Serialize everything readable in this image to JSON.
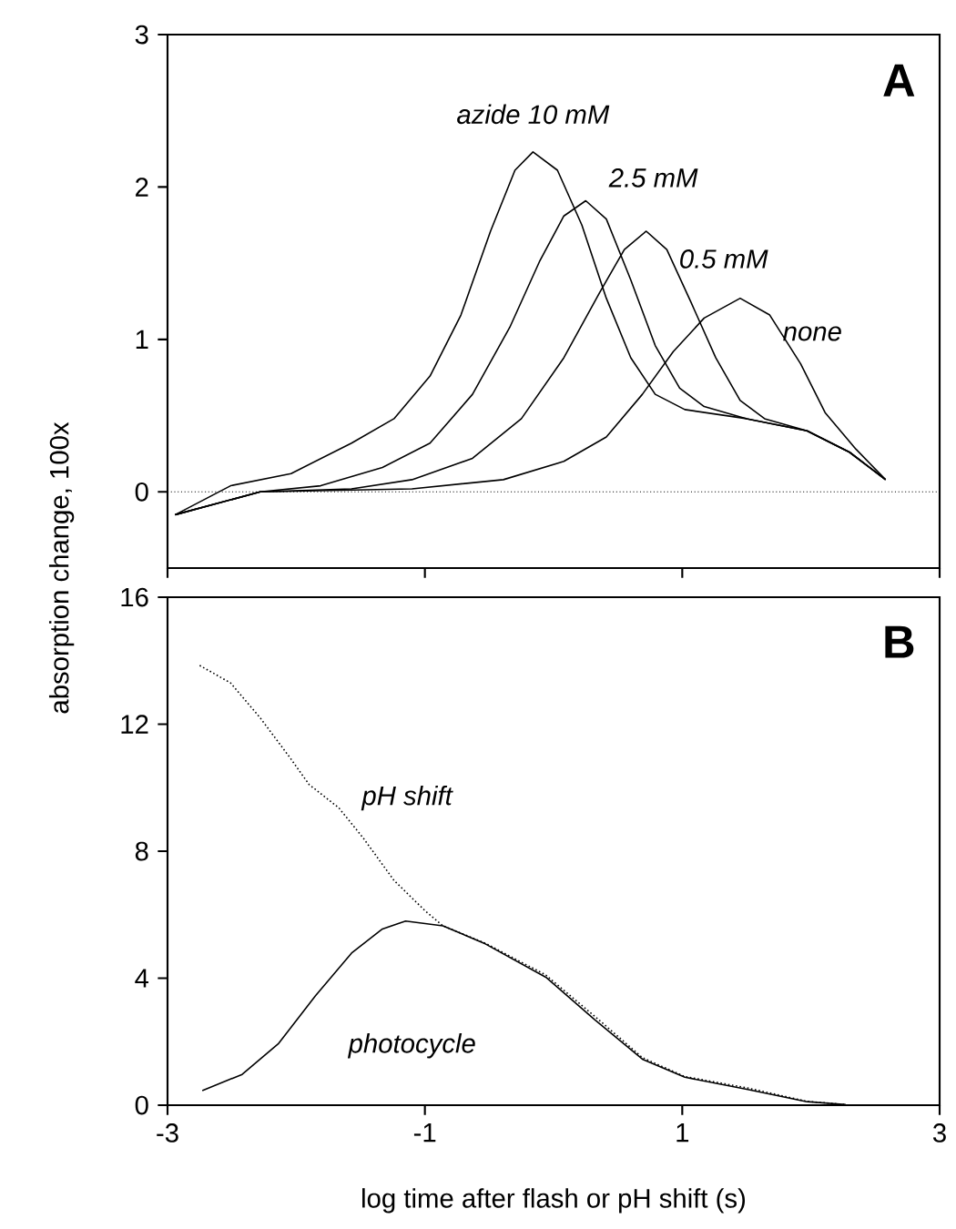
{
  "chart_data": [
    {
      "type": "line",
      "ylabel": "absorption change, 100x",
      "annotations": [
        "A"
      ],
      "xlim": [
        -3,
        3
      ],
      "xticks": [
        {
          "value": -3,
          "label": null
        },
        {
          "value": -1,
          "label": null
        },
        {
          "value": 1,
          "label": null
        },
        {
          "value": 3,
          "label": null
        }
      ],
      "ylim": [
        -0.5,
        3
      ],
      "yticks": [
        0,
        1,
        2,
        3
      ],
      "tick_labels": "y",
      "grid": false,
      "legend": false,
      "ref_lines": [
        {
          "axis": "y",
          "value": 0,
          "line_style": "dotted"
        }
      ],
      "series": [
        {
          "name": "azide 10 mM",
          "color": "#000000",
          "x": [
            -2.94,
            -2.51,
            -2.04,
            -1.57,
            -1.24,
            -0.96,
            -0.72,
            -0.49,
            -0.3,
            -0.16,
            0.03,
            0.22,
            0.41,
            0.6,
            0.79,
            1.02,
            1.5,
            1.97,
            2.3,
            2.58
          ],
          "values": [
            -0.15,
            0.04,
            0.12,
            0.32,
            0.48,
            0.76,
            1.16,
            1.71,
            2.11,
            2.23,
            2.11,
            1.75,
            1.27,
            0.88,
            0.64,
            0.54,
            0.48,
            0.4,
            0.26,
            0.08
          ]
        },
        {
          "name": "2.5 mM",
          "color": "#000000",
          "x": [
            -2.94,
            -2.28,
            -1.81,
            -1.33,
            -0.96,
            -0.63,
            -0.34,
            -0.11,
            0.08,
            0.25,
            0.41,
            0.6,
            0.79,
            0.98,
            1.17,
            1.5,
            1.97,
            2.3,
            2.58
          ],
          "values": [
            -0.15,
            0,
            0.04,
            0.16,
            0.32,
            0.64,
            1.08,
            1.51,
            1.81,
            1.91,
            1.79,
            1.39,
            0.96,
            0.68,
            0.56,
            0.48,
            0.4,
            0.26,
            0.08
          ]
        },
        {
          "name": "0.5 mM",
          "color": "#000000",
          "x": [
            -2.94,
            -2.28,
            -1.57,
            -1.1,
            -0.63,
            -0.25,
            0.08,
            0.36,
            0.55,
            0.72,
            0.88,
            1.07,
            1.26,
            1.45,
            1.64,
            1.97,
            2.3,
            2.58
          ],
          "values": [
            -0.15,
            0,
            0.02,
            0.08,
            0.22,
            0.48,
            0.88,
            1.31,
            1.59,
            1.71,
            1.59,
            1.24,
            0.88,
            0.6,
            0.48,
            0.4,
            0.26,
            0.08
          ]
        },
        {
          "name": "none",
          "color": "#000000",
          "x": [
            -2.94,
            -2.28,
            -1.1,
            -0.39,
            0.08,
            0.41,
            0.69,
            0.93,
            1.17,
            1.45,
            1.68,
            1.92,
            2.11,
            2.35,
            2.58
          ],
          "values": [
            -0.15,
            0,
            0.02,
            0.08,
            0.2,
            0.36,
            0.64,
            0.92,
            1.14,
            1.27,
            1.16,
            0.84,
            0.52,
            0.28,
            0.08
          ]
        }
      ]
    },
    {
      "type": "line",
      "xlabel": "log time after flash or pH shift  (s)",
      "annotations": [
        "B"
      ],
      "xlim": [
        -3,
        3
      ],
      "xticks": [
        -3,
        -1,
        1,
        3
      ],
      "ylim": [
        0,
        16
      ],
      "yticks": [
        0,
        4,
        8,
        12,
        16
      ],
      "grid": false,
      "legend": false,
      "series": [
        {
          "name": "pH shift",
          "color": "#000000",
          "line_style": "dotted",
          "x": [
            -2.75,
            -2.51,
            -2.28,
            -2.04,
            -1.9,
            -1.67,
            -1.48,
            -1.24,
            -1.0,
            -0.86,
            -0.53,
            -0.06,
            0.32,
            0.69,
            1.02,
            1.5,
            1.97,
            2.27
          ],
          "values": [
            13.85,
            13.3,
            12.2,
            10.9,
            10.1,
            9.37,
            8.42,
            7.08,
            6.13,
            5.65,
            5.1,
            4.1,
            2.8,
            1.5,
            0.9,
            0.55,
            0.12,
            0.02
          ]
        },
        {
          "name": "photocycle",
          "color": "#000000",
          "line_style": "solid",
          "x": [
            -2.73,
            -2.42,
            -2.14,
            -1.85,
            -1.57,
            -1.33,
            -1.15,
            -0.86,
            -0.53,
            -0.06,
            0.32,
            0.69,
            1.02,
            1.5,
            1.97,
            2.27
          ],
          "values": [
            0.46,
            0.97,
            1.93,
            3.45,
            4.79,
            5.55,
            5.8,
            5.65,
            5.08,
            4.03,
            2.69,
            1.45,
            0.88,
            0.5,
            0.11,
            0.02
          ]
        }
      ]
    }
  ]
}
